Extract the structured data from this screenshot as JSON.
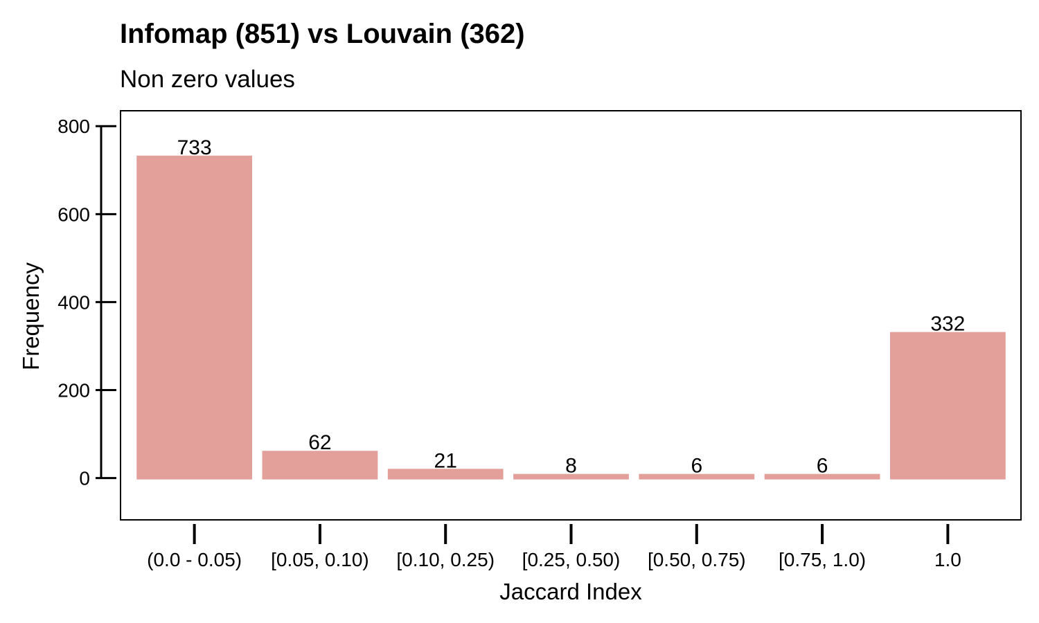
{
  "chart_data": {
    "type": "bar",
    "title": "Infomap (851) vs Louvain (362)",
    "subtitle": "Non zero values",
    "xlabel": "Jaccard Index",
    "ylabel": "Frequency",
    "categories": [
      "(0.0 - 0.05)",
      "[0.05, 0.10)",
      "[0.10, 0.25)",
      "[0.25, 0.50)",
      "[0.50, 0.75)",
      "[0.75, 1.0)",
      "1.0"
    ],
    "values": [
      733,
      62,
      21,
      8,
      6,
      6,
      332
    ],
    "data_labels": [
      "733",
      "62",
      "21",
      "8",
      "6",
      "6",
      "332"
    ],
    "yticks": [
      0,
      200,
      400,
      600,
      800
    ],
    "ytick_labels": [
      "0",
      "200",
      "400",
      "600",
      "800"
    ],
    "ylim": [
      -95,
      835
    ],
    "grid": false,
    "bar_color": "#e3a09a"
  }
}
